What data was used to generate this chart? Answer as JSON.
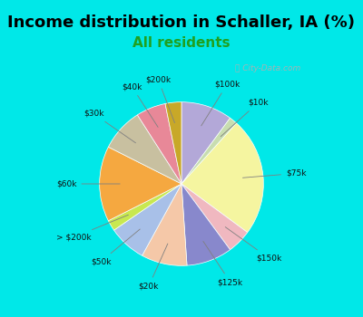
{
  "title": "Income distribution in Schaller, IA (%)",
  "subtitle": "All residents",
  "background_color": "#00e8e8",
  "chart_bg": "#e8f5ef",
  "watermark": "Ⓜ City-Data.com",
  "segments": [
    {
      "label": "$100k",
      "value": 9.5,
      "color": "#b3a8d8"
    },
    {
      "label": "$10k",
      "value": 1.5,
      "color": "#c8ddb0"
    },
    {
      "label": "$75k",
      "value": 22.0,
      "color": "#f5f5a0"
    },
    {
      "label": "$150k",
      "value": 4.5,
      "color": "#f0b8c0"
    },
    {
      "label": "$125k",
      "value": 8.5,
      "color": "#8888cc"
    },
    {
      "label": "$20k",
      "value": 8.5,
      "color": "#f5c8a8"
    },
    {
      "label": "$50k",
      "value": 7.0,
      "color": "#a8c0e8"
    },
    {
      "label": "> $200k",
      "value": 2.0,
      "color": "#c8e850"
    },
    {
      "label": "$60k",
      "value": 14.0,
      "color": "#f5a840"
    },
    {
      "label": "$30k",
      "value": 8.0,
      "color": "#c8c0a0"
    },
    {
      "label": "$40k",
      "value": 5.5,
      "color": "#e88898"
    },
    {
      "label": "$200k",
      "value": 3.0,
      "color": "#c8a828"
    }
  ],
  "title_fontsize": 13,
  "subtitle_fontsize": 11,
  "subtitle_color": "#20a020",
  "title_color": "#000000",
  "startangle": 90,
  "label_distance": 1.28
}
